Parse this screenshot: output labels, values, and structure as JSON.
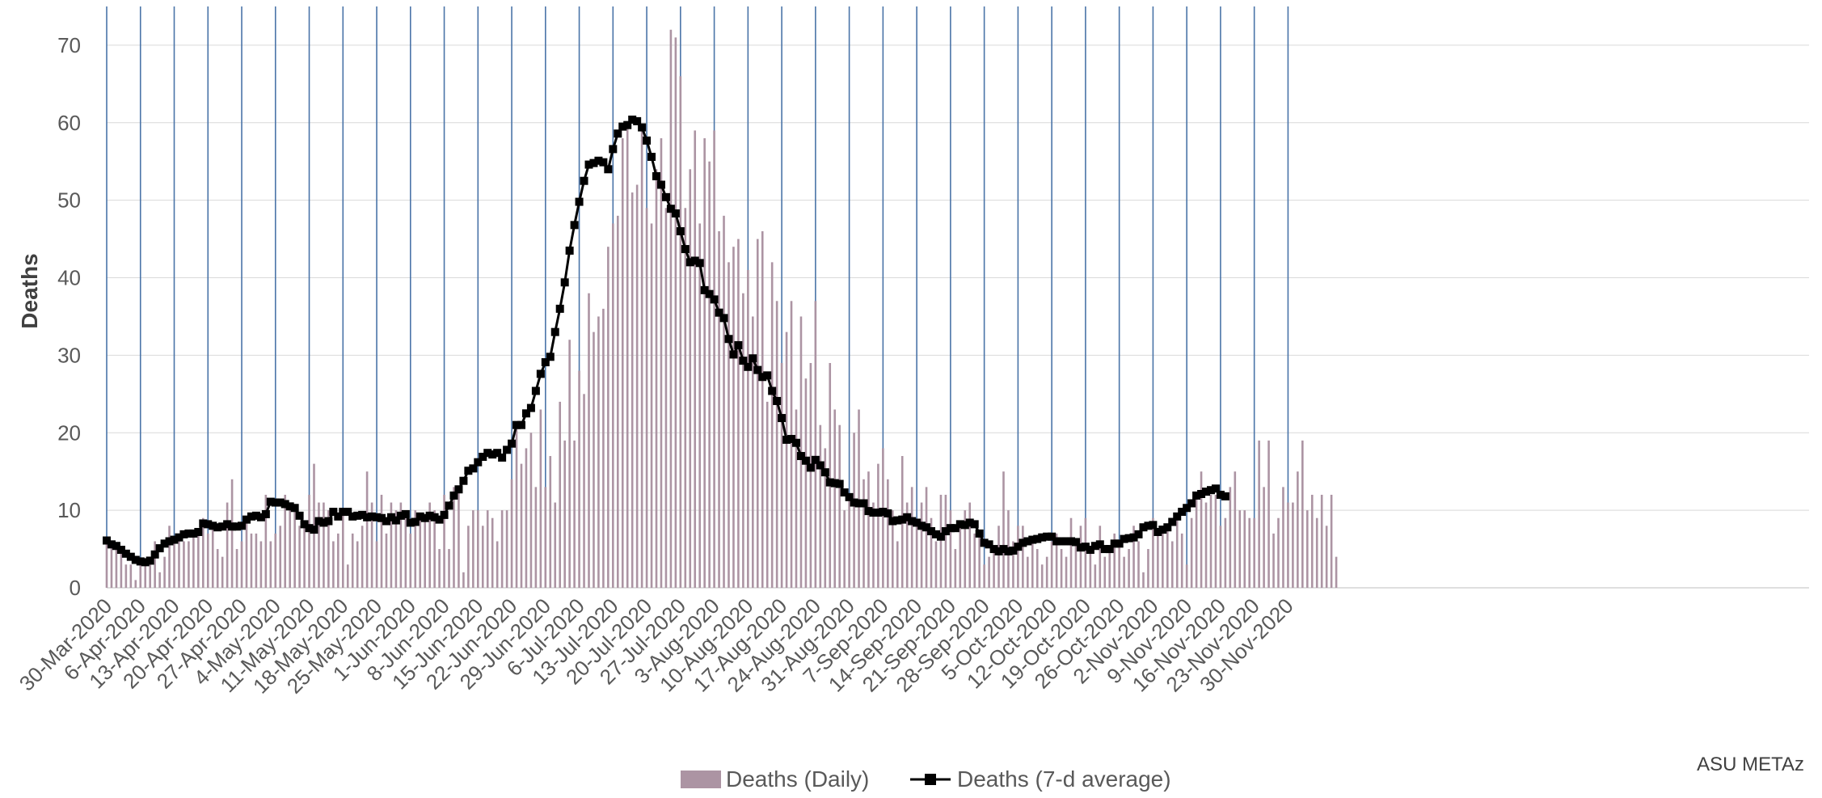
{
  "chart_data": {
    "type": "bar+line",
    "ylabel": "Deaths",
    "ylim": [
      0,
      75
    ],
    "yticks": [
      0,
      10,
      20,
      30,
      40,
      50,
      60,
      70
    ],
    "grid": "horizontal and weekly vertical lines",
    "x_start": "30-Mar-2020",
    "x_tick_labels": [
      "30-Mar-2020",
      "6-Apr-2020",
      "13-Apr-2020",
      "20-Apr-2020",
      "27-Apr-2020",
      "4-May-2020",
      "11-May-2020",
      "18-May-2020",
      "25-May-2020",
      "1-Jun-2020",
      "8-Jun-2020",
      "15-Jun-2020",
      "22-Jun-2020",
      "29-Jun-2020",
      "6-Jul-2020",
      "13-Jul-2020",
      "20-Jul-2020",
      "27-Jul-2020",
      "3-Aug-2020",
      "10-Aug-2020",
      "17-Aug-2020",
      "24-Aug-2020",
      "31-Aug-2020",
      "7-Sep-2020",
      "14-Sep-2020",
      "21-Sep-2020",
      "28-Sep-2020",
      "5-Oct-2020",
      "12-Oct-2020",
      "19-Oct-2020",
      "26-Oct-2020",
      "2-Nov-2020",
      "9-Nov-2020",
      "16-Nov-2020",
      "23-Nov-2020",
      "30-Nov-2020"
    ],
    "legend_position": "bottom",
    "series": [
      {
        "name": "Deaths (Daily)",
        "kind": "bar",
        "color": "#ac94a3",
        "values": [
          6,
          6,
          5,
          5,
          3,
          3,
          1,
          3,
          3,
          3,
          6,
          2,
          4,
          8,
          6,
          7,
          6,
          6,
          7,
          7,
          9,
          7,
          8,
          5,
          4,
          11,
          14,
          5,
          6,
          9,
          7,
          7,
          6,
          12,
          6,
          7,
          8,
          12,
          11,
          10,
          8,
          8,
          12,
          16,
          11,
          11,
          10,
          6,
          7,
          10,
          3,
          7,
          6,
          8,
          15,
          11,
          6,
          12,
          7,
          11,
          10,
          11,
          9,
          7,
          10,
          9,
          9,
          11,
          10,
          5,
          12,
          5,
          13,
          13,
          2,
          8,
          10,
          10,
          8,
          10,
          9,
          6,
          10,
          10,
          14,
          21,
          16,
          18,
          20,
          13,
          23,
          13,
          17,
          11,
          24,
          19,
          32,
          19,
          28,
          25,
          38,
          33,
          35,
          36,
          44,
          47,
          48,
          58,
          60,
          51,
          52,
          59,
          49,
          47,
          54,
          58,
          49,
          72,
          71,
          66,
          49,
          54,
          59,
          47,
          58,
          55,
          59,
          46,
          48,
          42,
          44,
          45,
          38,
          41,
          35,
          45,
          46,
          24,
          42,
          37,
          29,
          33,
          37,
          23,
          35,
          27,
          29,
          37,
          21,
          18,
          29,
          23,
          21,
          10,
          12,
          20,
          23,
          14,
          15,
          11,
          16,
          18,
          14,
          10,
          6,
          17,
          11,
          13,
          8,
          11,
          13,
          9,
          6,
          12,
          12,
          10,
          5,
          8,
          10,
          11,
          7,
          7,
          3,
          4,
          5,
          8,
          15,
          10,
          6,
          8,
          8,
          4,
          6,
          5,
          3,
          4,
          6,
          7,
          5,
          4,
          9,
          6,
          8,
          9,
          5,
          3,
          8,
          4,
          5,
          7,
          6,
          4,
          5,
          8,
          6,
          2,
          5,
          9,
          7,
          8,
          8,
          6,
          9,
          7,
          3,
          9,
          12,
          15,
          11,
          12,
          12,
          8,
          9,
          13,
          15,
          10,
          10,
          9,
          9,
          19,
          13,
          19,
          7,
          9,
          13,
          11,
          11,
          15,
          19,
          10,
          12,
          9,
          12,
          8,
          12,
          4
        ]
      },
      {
        "name": "Deaths (7-d average)",
        "kind": "line",
        "color": "#000000",
        "values": [
          6.1,
          5.6,
          5.4,
          4.9,
          4.4,
          4.0,
          3.6,
          3.4,
          3.3,
          3.5,
          4.3,
          5.1,
          5.7,
          6.0,
          6.2,
          6.5,
          6.9,
          7.0,
          7.0,
          7.2,
          8.3,
          8.2,
          8.0,
          7.8,
          7.9,
          8.2,
          7.9,
          7.9,
          8.0,
          8.8,
          9.2,
          9.3,
          9.1,
          9.5,
          11.1,
          11.0,
          11.0,
          10.8,
          10.5,
          10.3,
          9.3,
          8.2,
          7.7,
          7.5,
          8.6,
          8.4,
          8.6,
          9.8,
          9.2,
          9.8,
          9.8,
          9.2,
          9.3,
          9.4,
          9.1,
          9.2,
          9.1,
          9.0,
          8.6,
          9.1,
          8.7,
          9.3,
          9.5,
          8.4,
          8.5,
          9.2,
          9.0,
          9.3,
          9.1,
          8.8,
          9.4,
          10.6,
          11.9,
          12.7,
          13.8,
          15.1,
          15.4,
          16.2,
          16.9,
          17.4,
          17.2,
          17.4,
          16.8,
          17.8,
          18.6,
          21.0,
          21.0,
          22.5,
          23.2,
          25.4,
          27.6,
          29.1,
          29.8,
          33.0,
          36.0,
          39.4,
          43.5,
          46.8,
          49.8,
          52.5,
          54.6,
          54.8,
          55.1,
          54.9,
          54.0,
          56.6,
          58.6,
          59.5,
          59.7,
          60.4,
          60.2,
          59.4,
          57.7,
          55.6,
          53.1,
          52.0,
          50.4,
          48.9,
          48.3,
          46.0,
          43.7,
          42.0,
          42.2,
          41.9,
          38.4,
          37.9,
          37.2,
          35.5,
          34.8,
          32.1,
          30.1,
          31.3,
          29.3,
          28.5,
          29.6,
          28.1,
          27.2,
          27.4,
          25.4,
          24.1,
          21.9,
          19.1,
          19.2,
          18.7,
          17.0,
          16.4,
          15.5,
          16.5,
          15.8,
          14.9,
          13.6,
          13.5,
          13.4,
          12.3,
          11.7,
          11.0,
          10.9,
          10.9,
          9.9,
          9.7,
          9.7,
          9.8,
          9.6,
          8.6,
          8.7,
          8.8,
          9.1,
          8.6,
          8.4,
          8.0,
          7.8,
          7.3,
          6.9,
          6.6,
          7.3,
          7.7,
          7.7,
          8.2,
          8.1,
          8.4,
          8.2,
          7.0,
          5.8,
          5.6,
          5.0,
          4.7,
          5.0,
          4.7,
          4.8,
          5.3,
          5.8,
          6.0,
          6.2,
          6.3,
          6.5,
          6.6,
          6.6,
          6.0,
          6.0,
          6.0,
          6.0,
          5.9,
          5.2,
          5.3,
          4.9,
          5.4,
          5.6,
          5.0,
          5.0,
          5.7,
          5.7,
          6.3,
          6.4,
          6.5,
          6.9,
          7.8,
          8.0,
          8.1,
          7.2,
          7.5,
          7.8,
          8.5,
          9.2,
          9.8,
          10.3,
          10.9,
          11.9,
          12.1,
          12.4,
          12.6,
          12.8,
          12.0,
          11.8
        ]
      }
    ],
    "annotation": "ASU METAz"
  }
}
